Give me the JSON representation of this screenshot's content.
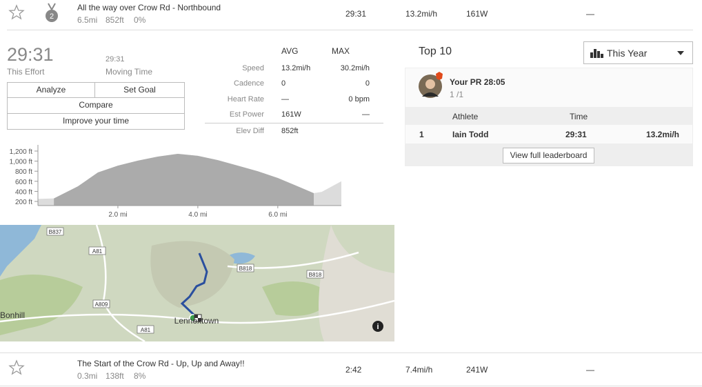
{
  "segments": [
    {
      "rank_badge": "2",
      "title": "All the way over Crow Rd - Northbound",
      "distance": "6.5mi",
      "elevation": "852ft",
      "grade": "0%",
      "time": "29:31",
      "speed": "13.2mi/h",
      "power": "161W",
      "heart_rate": "—"
    },
    {
      "title": "The Start of the Crow Rd - Up, Up and Away!!",
      "distance": "0.3mi",
      "elevation": "138ft",
      "grade": "8%",
      "time": "2:42",
      "speed": "7.4mi/h",
      "power": "241W",
      "heart_rate": "—"
    }
  ],
  "effort": {
    "time": "29:31",
    "time_label": "This Effort",
    "moving_time": "29:31",
    "moving_time_label": "Moving Time",
    "buttons": [
      "Analyze",
      "Set Goal",
      "Compare",
      "Improve your time"
    ]
  },
  "stats": {
    "headers": [
      "AVG",
      "MAX"
    ],
    "rows": [
      [
        "Speed",
        "13.2mi/h",
        "30.2mi/h"
      ],
      [
        "Cadence",
        "0",
        "0"
      ],
      [
        "Heart Rate",
        "—",
        "0 bpm"
      ],
      [
        "Est Power",
        "161W",
        "—"
      ],
      [
        "Elev Diff",
        "852ft"
      ]
    ]
  },
  "leaderboard": {
    "title": "Top 10",
    "filter": "This Year",
    "pr": "Your PR 28:05",
    "pr_rank": "1 /1",
    "headers": [
      "Athlete",
      "Time"
    ],
    "rows": [
      [
        "1",
        "Iain Todd",
        "29:31",
        "13.2mi/h"
      ]
    ],
    "button": "View full leaderboard"
  },
  "chart_data": {
    "type": "area",
    "x": [
      0,
      0.4,
      1.0,
      1.5,
      2.0,
      2.5,
      3.0,
      3.5,
      4.0,
      4.5,
      5.0,
      5.5,
      6.0,
      6.5,
      6.9,
      7.1,
      7.59
    ],
    "series": [
      {
        "color": "#dcdcdc",
        "values": [
          250,
          260,
          500,
          775,
          910,
          1010,
          1090,
          1145,
          1105,
          1020,
          910,
          800,
          665,
          500,
          365,
          390,
          600
        ]
      },
      {
        "color": "#ababab",
        "values": [
          null,
          260,
          500,
          775,
          910,
          1010,
          1090,
          1145,
          1105,
          1020,
          910,
          800,
          665,
          500,
          365,
          null,
          null
        ]
      }
    ],
    "xlim": [
      0,
      7.59
    ],
    "ylim": [
      118,
      1323
    ],
    "xticks": [
      {
        "value": 2,
        "label": "2.0 mi"
      },
      {
        "value": 4,
        "label": "4.0 mi"
      },
      {
        "value": 6,
        "label": "6.0 mi"
      }
    ],
    "yticks": [
      {
        "value": 200,
        "label": "200 ft"
      },
      {
        "value": 400,
        "label": "400 ft"
      },
      {
        "value": 600,
        "label": "600 ft"
      },
      {
        "value": 800,
        "label": "800 ft"
      },
      {
        "value": 1000,
        "label": "1,000 ft"
      },
      {
        "value": 1200,
        "label": "1,200 ft"
      }
    ]
  },
  "map": {
    "labels": [
      "B837",
      "A81",
      "B818",
      "B818",
      "A809",
      "Bonhill",
      "A81",
      "Lennoxtown"
    ]
  }
}
